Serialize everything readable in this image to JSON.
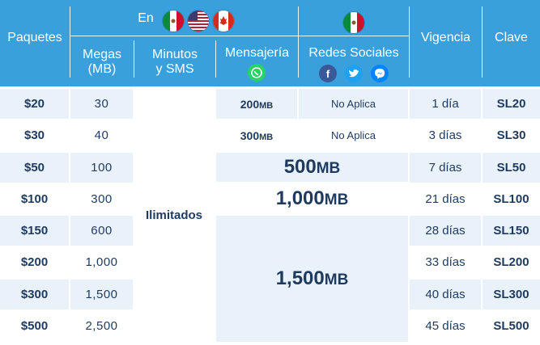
{
  "header": {
    "paquetes": "Paquetes",
    "en": "En",
    "megas": "Megas",
    "megas_unit": "(MB)",
    "minutos": "Minutos",
    "sms": "y SMS",
    "mensajeria": "Mensajería",
    "redes": "Redes Sociales",
    "vigencia": "Vigencia",
    "clave": "Clave"
  },
  "rows": [
    {
      "price": "$20",
      "megas": "30",
      "messaging_num": "200",
      "messaging_unit": "MB",
      "social": "No Aplica",
      "days": "1 día",
      "key": "SL20"
    },
    {
      "price": "$30",
      "megas": "40",
      "messaging_num": "300",
      "messaging_unit": "MB",
      "social": "No Aplica",
      "days": "3 días",
      "key": "SL30"
    },
    {
      "price": "$50",
      "megas": "100",
      "days": "7 días",
      "key": "SL50"
    },
    {
      "price": "$100",
      "megas": "300",
      "days": "21 días",
      "key": "SL100"
    },
    {
      "price": "$150",
      "megas": "600",
      "days": "28 días",
      "key": "SL150"
    },
    {
      "price": "$200",
      "megas": "1,000",
      "days": "33 días",
      "key": "SL200"
    },
    {
      "price": "$300",
      "megas": "1,500",
      "days": "40 días",
      "key": "SL300"
    },
    {
      "price": "$500",
      "megas": "2,500",
      "days": "45 días",
      "key": "SL500"
    }
  ],
  "combined": {
    "row3_num": "500",
    "row3_unit": "MB",
    "row4_num": "1,000",
    "row4_unit": "MB",
    "rows5to8_num": "1,500",
    "rows5to8_unit": "MB",
    "ilimitados": "Ilimitados"
  },
  "icons": {
    "flags": [
      "mexico-flag-icon",
      "usa-flag-icon",
      "canada-flag-icon"
    ],
    "social_flag": "mexico-flag-icon",
    "messaging": "whatsapp-icon",
    "social": [
      "facebook-icon",
      "twitter-icon",
      "messenger-icon"
    ]
  },
  "colors": {
    "header": "#3aa0dc",
    "text": "#1e3a5f",
    "row_tint": "#e9f1fa"
  }
}
